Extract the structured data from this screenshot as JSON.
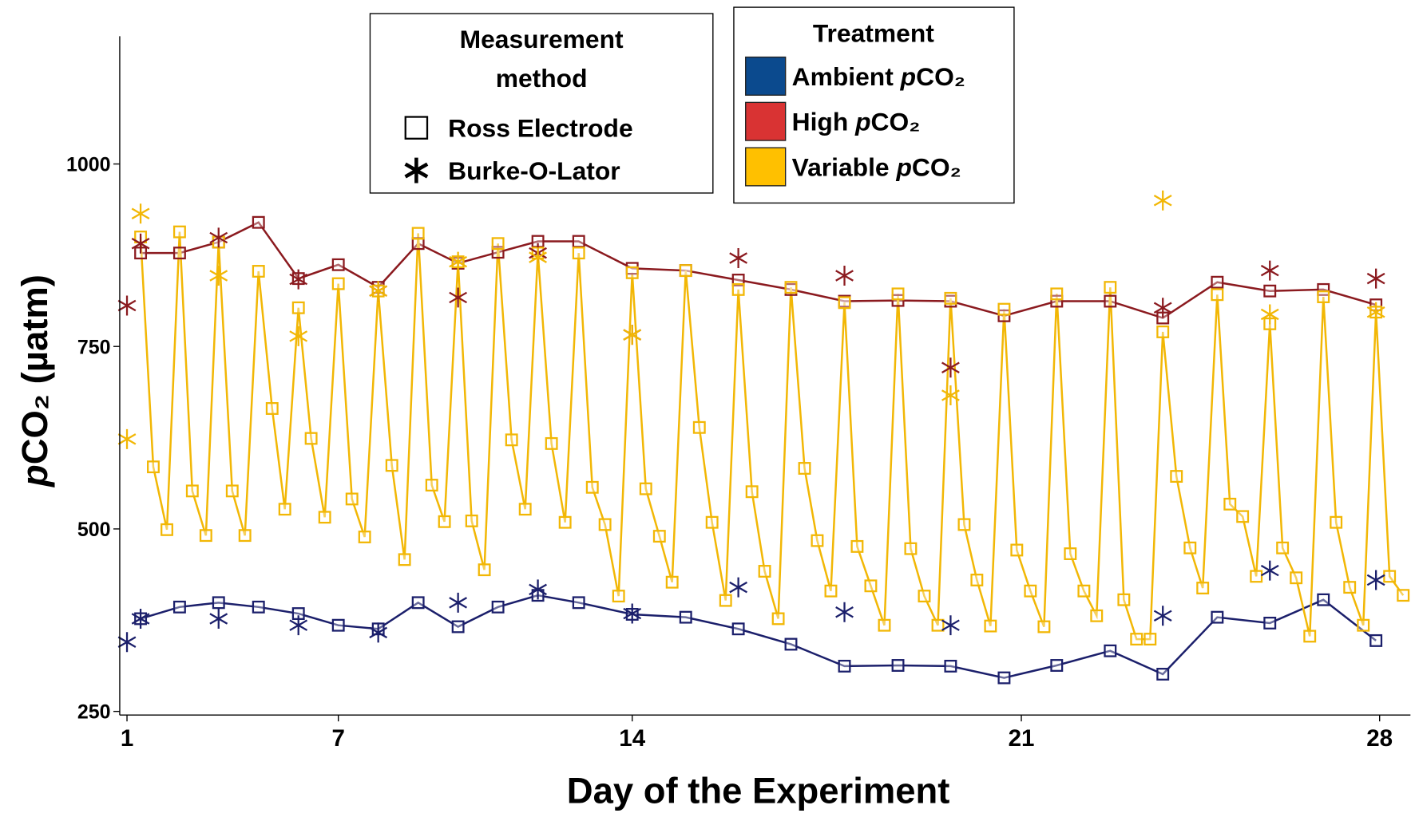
{
  "chart_data": {
    "type": "line",
    "xlabel": "Day of the Experiment",
    "ylabel": "pCO₂ (µatm)",
    "xlim": [
      -0.8,
      141.5
    ],
    "xticks": [
      {
        "value": 0,
        "label": "1"
      },
      {
        "value": 23.3,
        "label": "7"
      },
      {
        "value": 55.7,
        "label": "14"
      },
      {
        "value": 98.6,
        "label": "21"
      },
      {
        "value": 138.1,
        "label": "28"
      }
    ],
    "ylim": [
      245,
      1175
    ],
    "yticks": [
      250,
      500,
      750,
      1000
    ],
    "method_legend_title": "Measurement method",
    "methods": [
      {
        "name": "Ross Electrode",
        "marker": "square"
      },
      {
        "name": "Burke-O-Lator",
        "marker": "asterisk"
      }
    ],
    "treatment_legend_title": "Treatment",
    "series": [
      {
        "name": "Ambient pCO₂",
        "color": "#1b1f6b",
        "legend_color": "#0b4a8e",
        "ross": {
          "x": [
            1.5,
            5.8,
            10.1,
            14.5,
            18.9,
            23.3,
            27.7,
            32.1,
            36.5,
            40.9,
            45.3,
            49.8,
            55.7,
            61.6,
            67.4,
            73.2,
            79.1,
            85,
            90.8,
            96.7,
            102.5,
            108.4,
            114.2,
            120.2,
            126,
            131.9,
            137.7
          ],
          "values": [
            377,
            393,
            399,
            393,
            384,
            368,
            363,
            399,
            366,
            393,
            409,
            399,
            383,
            379,
            363,
            342,
            312,
            313,
            312,
            296,
            313,
            333,
            301,
            379,
            371,
            403,
            347
          ]
        },
        "burke": {
          "x": [
            0,
            1.5,
            10.1,
            18.9,
            27.7,
            36.5,
            45.3,
            55.7,
            67.4,
            79.1,
            90.8,
            114.2,
            126,
            137.7
          ],
          "values": [
            345,
            377,
            377,
            368,
            358,
            399,
            417,
            384,
            420,
            386,
            368,
            381,
            443,
            430
          ]
        }
      },
      {
        "name": "High pCO₂",
        "color": "#8b1a1f",
        "legend_color": "#d93333",
        "ross": {
          "x": [
            1.5,
            5.8,
            10.1,
            14.5,
            18.9,
            23.3,
            27.7,
            32.1,
            36.5,
            40.9,
            45.3,
            49.8,
            55.7,
            61.6,
            67.4,
            73.2,
            79.1,
            85,
            90.8,
            96.7,
            102.5,
            108.4,
            114.2,
            120.2,
            126,
            131.9,
            137.7
          ],
          "values": [
            878,
            878,
            893,
            920,
            843,
            862,
            831,
            891,
            864,
            879,
            894,
            894,
            857,
            854,
            841,
            828,
            812,
            813,
            812,
            792,
            812,
            812,
            789,
            838,
            826,
            828,
            807
          ]
        },
        "burke": {
          "x": [
            0,
            1.5,
            10.1,
            18.9,
            27.7,
            36.5,
            45.3,
            55.7,
            67.4,
            79.1,
            90.8,
            114.2,
            126,
            137.7
          ],
          "values": [
            806,
            891,
            899,
            842,
            826,
            817,
            878,
            766,
            871,
            847,
            721,
            803,
            854,
            843
          ]
        }
      },
      {
        "name": "Variable pCO₂",
        "color": "#f2b705",
        "legend_color": "#ffc000",
        "ross": {
          "x": [
            1.5,
            2.9,
            4.4,
            5.8,
            7.2,
            8.7,
            10.1,
            11.6,
            13,
            14.5,
            16,
            17.4,
            18.9,
            20.3,
            21.8,
            23.3,
            24.8,
            26.2,
            27.7,
            29.2,
            30.6,
            32.1,
            33.6,
            35,
            36.5,
            38,
            39.4,
            40.9,
            42.4,
            43.9,
            45.3,
            46.8,
            48.3,
            49.8,
            51.3,
            52.7,
            54.2,
            55.7,
            57.2,
            58.7,
            60.1,
            61.6,
            63.1,
            64.5,
            66,
            67.4,
            68.9,
            70.3,
            71.8,
            73.2,
            74.7,
            76.1,
            77.6,
            79.1,
            80.5,
            82,
            83.5,
            85,
            86.4,
            87.9,
            89.4,
            90.8,
            92.3,
            93.7,
            95.2,
            96.7,
            98.1,
            99.6,
            101.1,
            102.5,
            104,
            105.5,
            106.9,
            108.4,
            109.9,
            111.3,
            112.8,
            114.2,
            115.7,
            117.2,
            118.6,
            120.2,
            121.6,
            123,
            124.5,
            126,
            127.4,
            128.9,
            130.4,
            131.9,
            133.3,
            134.8,
            136.3,
            137.7,
            139.2,
            140.7
          ],
          "values": [
            900,
            585,
            499,
            907,
            552,
            491,
            893,
            552,
            491,
            853,
            665,
            527,
            803,
            624,
            516,
            836,
            541,
            489,
            826,
            587,
            458,
            905,
            560,
            510,
            866,
            511,
            444,
            891,
            622,
            527,
            878,
            617,
            509,
            878,
            557,
            506,
            408,
            851,
            555,
            490,
            427,
            854,
            639,
            509,
            402,
            828,
            551,
            442,
            377,
            831,
            583,
            484,
            415,
            810,
            476,
            422,
            368,
            822,
            473,
            408,
            368,
            816,
            506,
            430,
            367,
            801,
            471,
            415,
            366,
            822,
            466,
            415,
            381,
            831,
            403,
            349,
            349,
            770,
            572,
            474,
            419,
            821,
            534,
            517,
            435,
            781,
            474,
            433,
            353,
            818,
            509,
            420,
            368,
            797,
            435,
            409
          ]
        },
        "burke": {
          "x": [
            0,
            1.5,
            10.1,
            18.9,
            27.7,
            36.5,
            45.3,
            55.7,
            90.8,
            114.2,
            126,
            137.7
          ],
          "values": [
            623,
            932,
            847,
            764,
            826,
            866,
            872,
            766,
            683,
            950,
            794,
            797
          ]
        }
      }
    ]
  }
}
